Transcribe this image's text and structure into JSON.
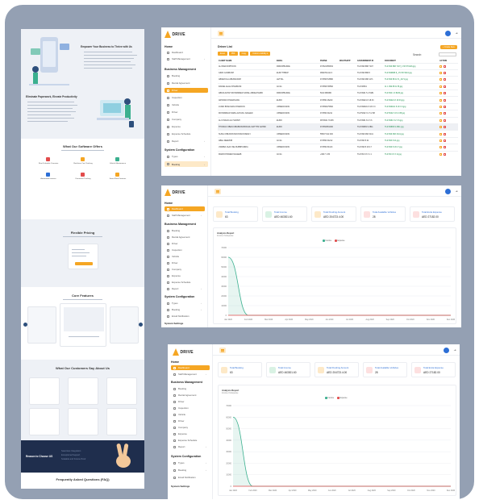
{
  "landing": {
    "hero_title": "Empower Your Business to Thrive with Us",
    "section2_title": "Eliminate Paperwork, Elevate Productivity",
    "offers_title": "What Our Software Offers",
    "offers": [
      "Fleet Schedule Overview",
      "Real-time Cost Tracking",
      "Vehicle Maintenance",
      "Automated Invoices",
      "Document Tracking",
      "Smart Fleet Features"
    ],
    "pricing_title": "Flexible Pricing",
    "core_title": "Core Features",
    "testimonials_title": "What Our Customers Say About Us",
    "choose_title": "Reason to Choose US",
    "choose_lines": [
      "Seamless Integration",
      "Exceptional Support",
      "Scalable and Future-Proof"
    ],
    "faq_title": "Frequently Asked Questions (FAQ)"
  },
  "app": {
    "brand": "DRIVE",
    "lang": "عـ",
    "nav": {
      "home_section": "Home",
      "dashboard": "Dashboard",
      "staff_management": "Staff Management",
      "business_section": "Business Management",
      "booking": "Booking",
      "rental_agreement": "Rental Agreement",
      "driver": "Driver",
      "inspection": "Inspection",
      "vehicle": "Vehicle",
      "driver2": "Driver",
      "company": "Company",
      "expense": "Expense",
      "expense_schedule": "Expense Schedule",
      "report": "Report",
      "system_section": "System Configuration",
      "types": "Types",
      "booking_cfg": "Booking",
      "email_notification": "Email Notification",
      "system_settings": "System Settings"
    }
  },
  "driver_list": {
    "title": "Driver List",
    "tabs": [
      "Excel",
      "PDF",
      "Copy",
      "Column visibility ▾"
    ],
    "search_label": "Search:",
    "add_button": "+ Create New",
    "columns": [
      "CLIENT NAME",
      "EMAIL",
      "PHONE",
      "WHATSAPP",
      "GOVERNMENT ID",
      "DOCUMENT",
      "ACTION"
    ],
    "rows": [
      [
        "ALI BADI RIPHOON",
        "RDNOPBAKDE",
        "971521355454",
        "",
        "TLR 999 888 7107",
        "TLR 999 888 7107_1747273416.jpg"
      ],
      [
        "GIMO GODBUSH",
        "EURYTHBOP",
        "9699701411 0",
        "",
        "TLR 999 888 8",
        "TLR 999888 8_1747373416.jpg"
      ],
      [
        "ABDEXOLA ABUBAKRAH",
        "LETTAL",
        "971550718880",
        "",
        "TLR 999 088 1171",
        "TLR 999 88 1171_4471.jpg"
      ],
      [
        "DANIEL ELLE KHAMRANI",
        "AC1G",
        "971550745560",
        "",
        "TLR 96501",
        "11 1 999 88 1178.jpg"
      ],
      [
        "ABDULFATAH MOHAMMED SAHEL ABDELHAMID",
        "RDNOPBAKDE",
        "5010 986080",
        "",
        "TLR 9901 5 2 8181",
        "TLR 990 1 9 8180.jpg"
      ],
      [
        "ARSHAD KHAMANIJAN",
        "EURO",
        "971550 46220",
        "",
        "TLR 99021 8 18 33",
        "TLR 99021 8 18 33.jpg"
      ],
      [
        "JUNID BISSUNAN KHARRON",
        "UPREDUNION",
        "971550475660",
        "",
        "TLR 999021 8 18 3 3",
        "TLR 999021 8 18 3 3.jpg"
      ],
      [
        "MOHAMMAD NABIL ALHAKIL NALEED",
        "UPREDUNION",
        "971550 64211",
        "",
        "TLR 5002 3 1 5 2 88",
        "TLR 5002 3 15 2 88.jpg"
      ],
      [
        "ALI KHALID ALI HARISH",
        "EURO",
        "9670641 71345",
        "",
        "TLR 9961 8 2 3 6",
        "TLR 9961 8 2 3 6.jpg"
      ],
      [
        "THOMAS OBEN KIBABIDSOBONAIL MATTHS SAHIDI",
        "EURO",
        "971553051000",
        "",
        "TLR 99809 9 2811",
        "TLR 99809 9 2811.jpg"
      ],
      [
        "SUNG KIBIJORN MOONSUN BESLY",
        "UPREDUNION",
        "55507 911 000",
        "",
        "TLR 999 068 3141",
        "TLR 999 068 3141.jpg"
      ],
      [
        "ABEL DEEMOB",
        "AC1G",
        "971550 64212",
        "",
        "TLR 993 8 21",
        "TLR 993 8 21.jpg"
      ],
      [
        "UWMBA JAAF INE RUBBHURRIA",
        "UPREDUNION",
        "971550 84413",
        "",
        "TLR 999 8 18 17",
        "TLR 999 8 18 17.jpg"
      ],
      [
        "MAROOHAMED NAGEEB",
        "AC1G",
        "+9617 1 80",
        "",
        "TLR 99 0 8 3 1 1",
        "TLR 99 0 8 3 11.jpg"
      ]
    ]
  },
  "dashboard": {
    "cards": [
      {
        "label": "Total Booking",
        "value": "63",
        "color": "#fde9c8"
      },
      {
        "label": "Total Income",
        "value": "AED 463301.60",
        "color": "#d9f2e4"
      },
      {
        "label": "Total Pending Amount",
        "value": "AED 204723.4.00",
        "color": "#fde9c8"
      },
      {
        "label": "Total Available Vehicles",
        "value": "28",
        "color": "#fde0e0"
      },
      {
        "label": "Total Extra Expense",
        "value": "AED 27182.00",
        "color": "#fde0e0"
      }
    ],
    "report_title": "Analysis Report",
    "report_subtitle": "Income Vs Expense",
    "legend": [
      {
        "name": "Income",
        "color": "#3bb08f"
      },
      {
        "name": "Expense",
        "color": "#e24c4c"
      }
    ]
  },
  "chart_data": {
    "type": "line",
    "x": [
      "Jan 2020",
      "Feb 2020",
      "Mar 2020",
      "Apr 2020",
      "May 2020",
      "Jun 2020",
      "Jul 2020",
      "Aug 2020",
      "Sep 2020",
      "Oct 2020",
      "Nov 2020",
      "Dec 2020"
    ],
    "series": [
      {
        "name": "Income",
        "values": [
          60000,
          0,
          0,
          0,
          0,
          0,
          0,
          0,
          0,
          0,
          0,
          0
        ]
      },
      {
        "name": "Expense",
        "values": [
          0,
          0,
          0,
          0,
          0,
          0,
          0,
          0,
          0,
          0,
          0,
          0
        ]
      }
    ],
    "yticks": [
      0,
      10000,
      20000,
      30000,
      40000,
      50000,
      60000,
      70000
    ],
    "ylim": [
      0,
      70000
    ],
    "title": "Analysis Report",
    "subtitle": "Income Vs Expense"
  }
}
